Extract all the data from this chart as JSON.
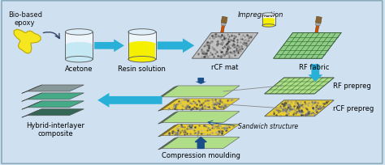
{
  "bg_color": "#cfe0f0",
  "arrow_color": "#29b0d8",
  "dark_arrow_color": "#1a4f8a",
  "beaker1_liquid": "#c5e8f5",
  "beaker2_liquid": "#f5f000",
  "epoxy_color": "#f5e620",
  "label_fontsize": 6.0,
  "small_fontsize": 5.5,
  "labels": {
    "bio_epoxy": "Bio-based\nepoxy",
    "acetone": "Acetone",
    "resin": "Resin solution",
    "impregnation": "Impregnation",
    "rcf_mat": "rCF mat",
    "rf_fabric": "RF fabric",
    "rf_prepreg": "RF prepreg",
    "rcf_prepreg": "rCF prepreg",
    "sandwich": "Sandwich structure",
    "compression": "Compression moulding",
    "hybrid": "Hybrid-interlayer\ncomposite"
  }
}
